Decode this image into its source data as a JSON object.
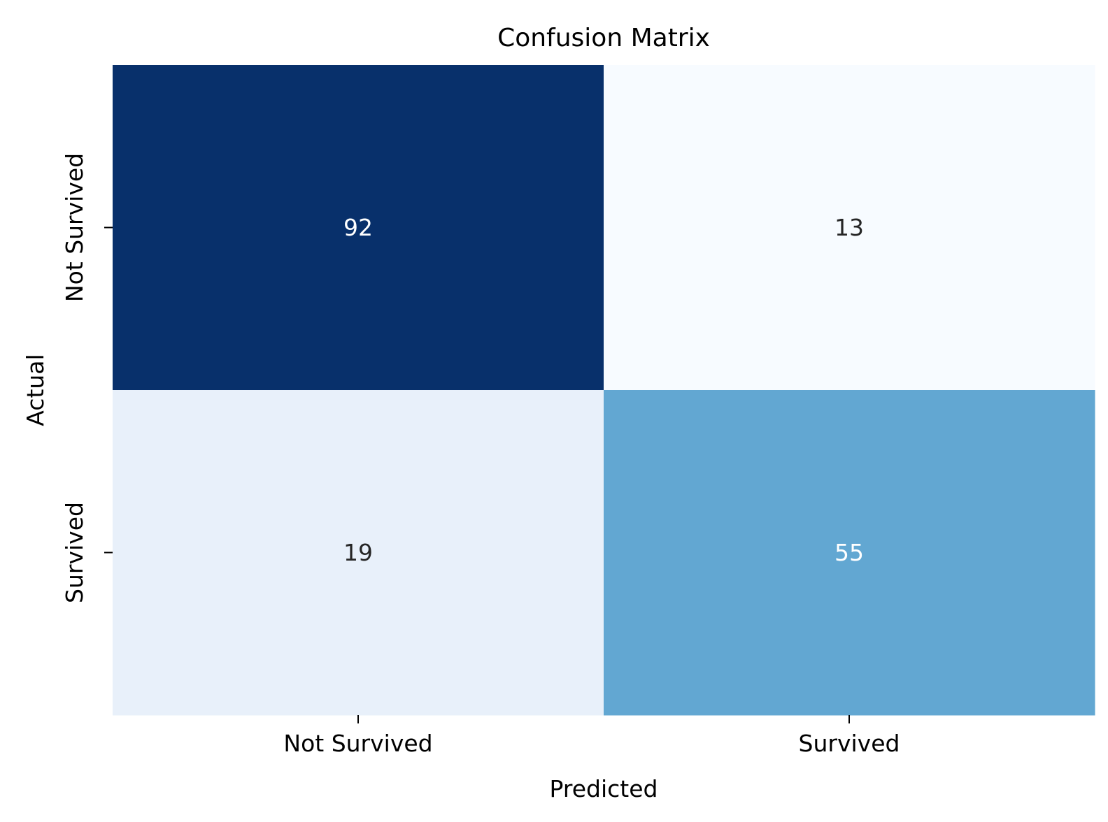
{
  "chart_data": {
    "type": "heatmap",
    "title": "Confusion Matrix",
    "xlabel": "Predicted",
    "ylabel": "Actual",
    "x_categories": [
      "Not Survived",
      "Survived"
    ],
    "y_categories": [
      "Not Survived",
      "Survived"
    ],
    "values": [
      [
        92,
        13
      ],
      [
        19,
        55
      ]
    ],
    "colormap": "Blues",
    "colorbar": false,
    "cell_colors": [
      [
        "#08306b",
        "#f7fbff"
      ],
      [
        "#e8f0fa",
        "#62a7d2"
      ]
    ],
    "annotation_colors": [
      [
        "#ffffff",
        "#262626"
      ],
      [
        "#262626",
        "#ffffff"
      ]
    ]
  }
}
